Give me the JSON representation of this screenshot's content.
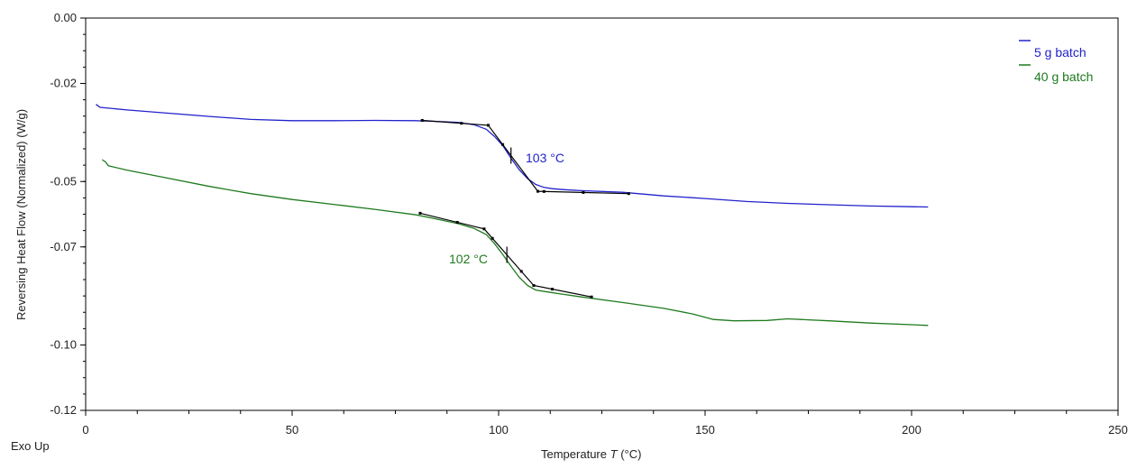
{
  "colors": {
    "series_5g": "#2222cc",
    "series_40g": "#1e7a1e",
    "construction": "#000000",
    "axis": "#000000"
  },
  "corner_label": "Exo Up",
  "chart_data": {
    "type": "line",
    "xlabel": "Temperature",
    "xlabel_symbol": "T",
    "xlabel_unit": "(°C)",
    "ylabel": "Reversing Heat Flow (Normalized) (W/g)",
    "xlim": [
      0,
      250
    ],
    "ylim": [
      -0.12,
      0.0
    ],
    "x_ticks": [
      0,
      50,
      100,
      150,
      200,
      250
    ],
    "x_tick_labels": [
      "0",
      "50",
      "100",
      "150",
      "200",
      "250"
    ],
    "y_ticks": [
      0.0,
      -0.02,
      -0.05,
      -0.07,
      -0.1,
      -0.12
    ],
    "y_tick_labels": [
      "0.00",
      "-0.02",
      "-0.05",
      "-0.07",
      "-0.10",
      "-0.12"
    ],
    "grid": false,
    "legend_position": "top-right",
    "series": [
      {
        "name": "5 g batch",
        "color": "#2222cc",
        "x": [
          2.5,
          3.5,
          10,
          20,
          30,
          40,
          50,
          60,
          70,
          80,
          85,
          90,
          94,
          97,
          99,
          101,
          103,
          105,
          107,
          109,
          111,
          113,
          116,
          120,
          130,
          140,
          150,
          160,
          170,
          180,
          190,
          200,
          204
        ],
        "y": [
          -0.0264,
          -0.0273,
          -0.0281,
          -0.0291,
          -0.0301,
          -0.031,
          -0.0314,
          -0.0314,
          -0.0313,
          -0.0314,
          -0.0316,
          -0.0319,
          -0.0326,
          -0.034,
          -0.0362,
          -0.039,
          -0.0428,
          -0.0464,
          -0.0491,
          -0.0509,
          -0.0518,
          -0.0522,
          -0.0525,
          -0.0528,
          -0.0533,
          -0.0544,
          -0.0552,
          -0.0561,
          -0.0567,
          -0.0571,
          -0.0575,
          -0.0577,
          -0.0578
        ]
      },
      {
        "name": "40 g batch",
        "color": "#1e7a1e",
        "x": [
          4,
          4.8,
          5.5,
          10,
          20,
          30,
          40,
          50,
          60,
          70,
          80,
          85,
          90,
          94,
          97,
          99,
          101,
          103,
          105,
          107,
          109,
          112,
          115,
          120,
          130,
          140,
          147,
          152,
          157,
          165,
          170,
          175,
          180,
          190,
          200,
          204
        ],
        "y": [
          -0.0433,
          -0.044,
          -0.0452,
          -0.0465,
          -0.049,
          -0.0515,
          -0.0537,
          -0.0555,
          -0.057,
          -0.0585,
          -0.0602,
          -0.0615,
          -0.0628,
          -0.0643,
          -0.0662,
          -0.069,
          -0.0723,
          -0.0759,
          -0.0793,
          -0.0818,
          -0.0832,
          -0.0838,
          -0.0844,
          -0.0853,
          -0.087,
          -0.0888,
          -0.0905,
          -0.0922,
          -0.0926,
          -0.0925,
          -0.092,
          -0.0923,
          -0.0926,
          -0.0933,
          -0.0938,
          -0.094
        ]
      }
    ],
    "construction_lines": [
      {
        "series": "5 g batch",
        "x": [
          81.5,
          97.5,
          109.5,
          131.5
        ],
        "y": [
          -0.0313,
          -0.0328,
          -0.053,
          -0.0537
        ],
        "markers_x": [
          81.5,
          91,
          97.5,
          101,
          109.5,
          111,
          120.5,
          131.5
        ]
      },
      {
        "series": "40 g batch",
        "x": [
          81,
          96.5,
          108.5,
          122.5
        ],
        "y": [
          -0.0597,
          -0.0645,
          -0.0818,
          -0.0853
        ],
        "markers_x": [
          81,
          90,
          96.5,
          98.5,
          105.5,
          108.5,
          113,
          122.5
        ]
      }
    ],
    "annotations": [
      {
        "text": "103 °C",
        "x": 103,
        "color": "#2222cc"
      },
      {
        "text": "102 °C",
        "x": 102,
        "color": "#1e7a1e"
      }
    ]
  }
}
